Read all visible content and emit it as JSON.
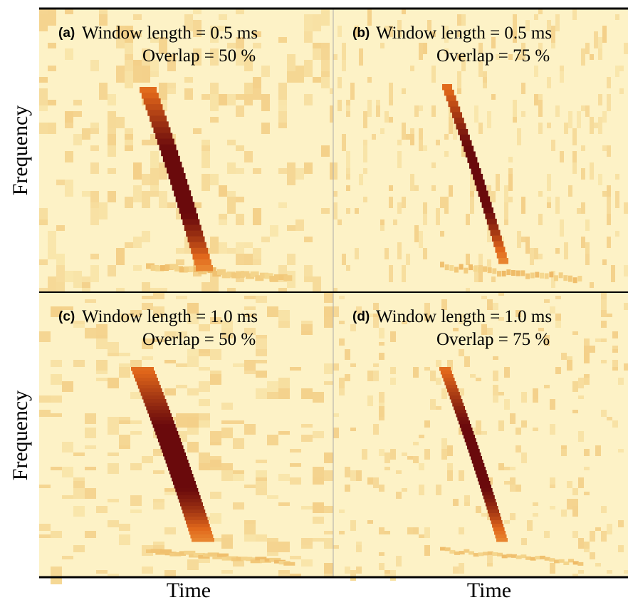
{
  "panels": [
    {
      "tag": "(a)",
      "window": "Window length = 0.5 ms",
      "overlap": "Overlap = 50 %"
    },
    {
      "tag": "(b)",
      "window": "Window length = 0.5 ms",
      "overlap": "Overlap = 75 %"
    },
    {
      "tag": "(c)",
      "window": "Window length = 1.0 ms",
      "overlap": "Overlap = 50 %"
    },
    {
      "tag": "(d)",
      "window": "Window length = 1.0 ms",
      "overlap": "Overlap = 75 %"
    }
  ],
  "y_labels": [
    "Frequency",
    "Frequency"
  ],
  "x_labels": [
    "Time",
    "Time"
  ]
}
